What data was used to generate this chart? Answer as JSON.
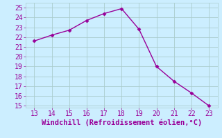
{
  "x": [
    13,
    14,
    15,
    16,
    17,
    18,
    19,
    20,
    21,
    22,
    23
  ],
  "y": [
    21.6,
    22.2,
    22.7,
    23.7,
    24.4,
    24.9,
    22.8,
    19.0,
    17.5,
    16.3,
    15.0
  ],
  "line_color": "#990099",
  "marker": "D",
  "marker_size": 2.5,
  "bg_color": "#cceeff",
  "grid_color": "#aacccc",
  "xlabel": "Windchill (Refroidissement éolien,°C)",
  "xlabel_color": "#990099",
  "xlabel_fontsize": 7.5,
  "tick_color": "#990099",
  "tick_fontsize": 7,
  "xlim": [
    12.5,
    23.5
  ],
  "ylim": [
    14.8,
    25.5
  ],
  "yticks": [
    15,
    16,
    17,
    18,
    19,
    20,
    21,
    22,
    23,
    24,
    25
  ],
  "xticks": [
    13,
    14,
    15,
    16,
    17,
    18,
    19,
    20,
    21,
    22,
    23
  ]
}
